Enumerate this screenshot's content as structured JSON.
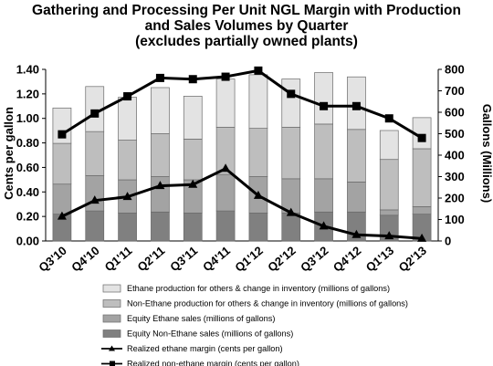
{
  "chart_data": {
    "type": "bar",
    "title_lines": [
      "Gathering and Processing Per Unit NGL Margin with Production",
      "and Sales Volumes by Quarter",
      "(excludes partially owned plants)"
    ],
    "ylabel": "Cents per gallon",
    "y2label": "Gallons (Millions)",
    "ylim": [
      0,
      1.4
    ],
    "y2lim": [
      0,
      800
    ],
    "yticks": [
      "0.00",
      "0.20",
      "0.40",
      "0.60",
      "0.80",
      "1.00",
      "1.20",
      "1.40"
    ],
    "y2ticks": [
      "0",
      "100",
      "200",
      "300",
      "400",
      "500",
      "600",
      "700",
      "800"
    ],
    "categories": [
      "Q3'10",
      "Q4'10",
      "Q1'11",
      "Q2'11",
      "Q3'11",
      "Q4'11",
      "Q1'12",
      "Q2'12",
      "Q3'12",
      "Q4'12",
      "Q1'13",
      "Q2'13"
    ],
    "grid": false,
    "legend_placement": "bottom",
    "bar_series": [
      {
        "name": "Equity Non-Ethane sales (millions of gallons)",
        "color": "#808080",
        "values": [
          125,
          140,
          130,
          135,
          130,
          140,
          130,
          130,
          135,
          135,
          120,
          125
        ]
      },
      {
        "name": "Equity Ethane sales (millions of gallons)",
        "color": "#a3a3a3",
        "values": [
          140,
          165,
          155,
          165,
          155,
          170,
          170,
          160,
          155,
          140,
          25,
          35
        ]
      },
      {
        "name": "Non-Ethane production for others & change in inventory (millions of gallons)",
        "color": "#bebebe",
        "values": [
          190,
          205,
          185,
          200,
          190,
          220,
          225,
          240,
          255,
          245,
          235,
          270
        ]
      },
      {
        "name": "Ethane production for others & change in inventory (millions of gallons)",
        "color": "#e3e3e3",
        "values": [
          165,
          210,
          200,
          215,
          200,
          225,
          250,
          225,
          240,
          245,
          135,
          145
        ]
      }
    ],
    "line_series": [
      {
        "name": "Realized ethane margin (cents per gallon)",
        "marker": "triangle",
        "values": [
          0.2,
          0.33,
          0.36,
          0.45,
          0.46,
          0.59,
          0.37,
          0.23,
          0.12,
          0.05,
          0.04,
          0.02
        ]
      },
      {
        "name": "Realized non-ethane margin (cents per gallon)",
        "marker": "square",
        "values": [
          0.87,
          1.04,
          1.18,
          1.33,
          1.32,
          1.34,
          1.39,
          1.2,
          1.1,
          1.1,
          1.0,
          0.84
        ]
      }
    ],
    "legend_order": [
      "Ethane production for others & change in inventory (millions of gallons)",
      "Non-Ethane production for others & change in inventory (millions of gallons)",
      "Equity Ethane sales (millions of gallons)",
      "Equity Non-Ethane sales (millions of gallons)",
      "Realized ethane margin (cents per gallon)",
      "Realized non-ethane margin (cents per gallon)"
    ]
  }
}
